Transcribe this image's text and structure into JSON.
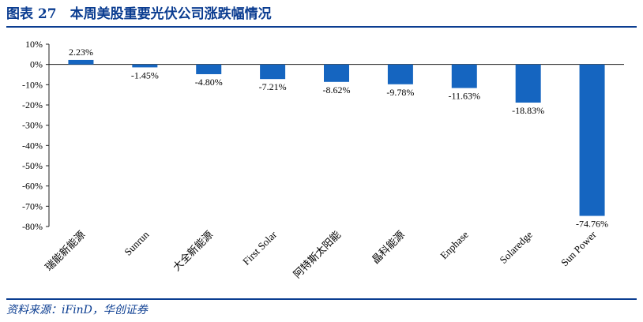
{
  "header": {
    "title": "图表 27　本周美股重要光伏公司涨跌幅情况"
  },
  "footer": {
    "source": "资料来源：iFinD，华创证券"
  },
  "colors": {
    "accent": "#0b3d91",
    "bar": "#1565c0"
  },
  "chart_data": {
    "type": "bar",
    "title": "",
    "xlabel": "",
    "ylabel": "",
    "categories": [
      "瑞能新能源",
      "Sunrun",
      "大全新能源",
      "First Solar",
      "阿特斯太阳能",
      "晶科能源",
      "Enphase",
      "Solaredge",
      "Sun Power"
    ],
    "values": [
      2.23,
      -1.45,
      -4.8,
      -7.21,
      -8.62,
      -9.78,
      -11.63,
      -18.83,
      -74.76
    ],
    "data_labels": [
      "2.23%",
      "-1.45%",
      "-4.80%",
      "-7.21%",
      "-8.62%",
      "-9.78%",
      "-11.63%",
      "-18.83%",
      "-74.76%"
    ],
    "ylim": [
      -80,
      10
    ],
    "yticks": [
      10,
      0,
      -10,
      -20,
      -30,
      -40,
      -50,
      -60,
      -70,
      -80
    ],
    "ytick_labels": [
      "10%",
      "0%",
      "-10%",
      "-20%",
      "-30%",
      "-40%",
      "-50%",
      "-60%",
      "-70%",
      "-80%"
    ],
    "grid": false,
    "legend": "none"
  }
}
